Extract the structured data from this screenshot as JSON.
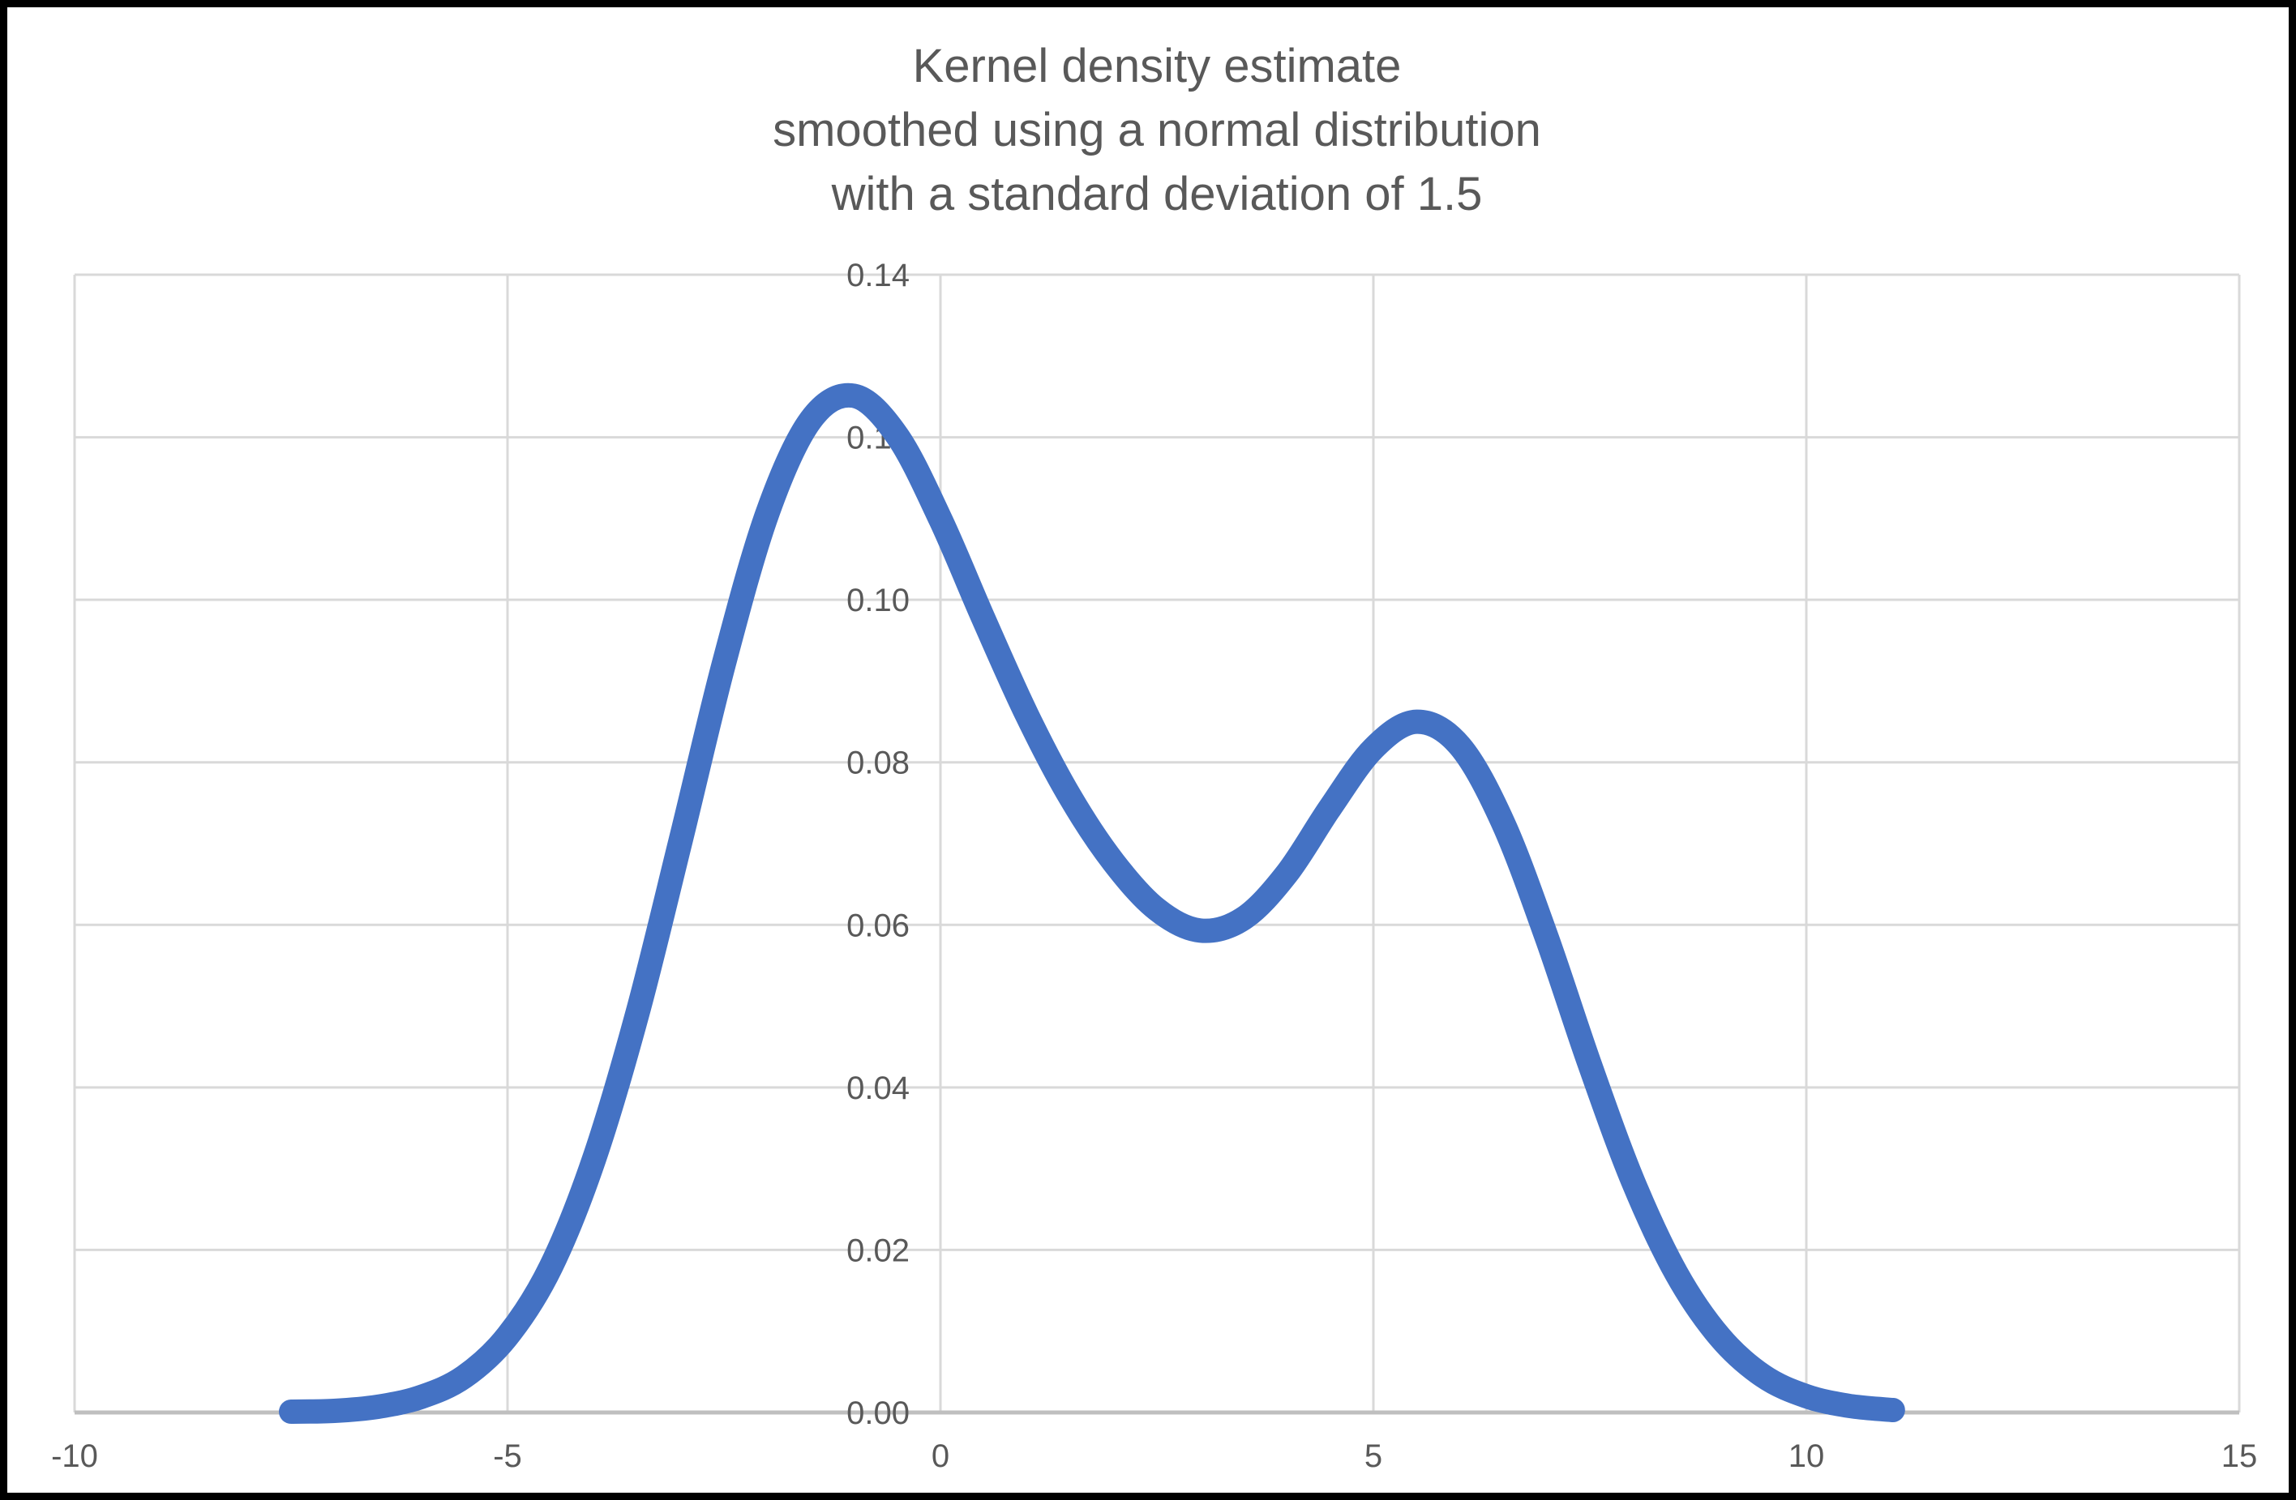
{
  "chart": {
    "title": "Kernel density estimate\nsmoothed using a normal distribution\nwith a standard deviation of 1.5",
    "colors": {
      "line": "#4472C4",
      "gridline": "#D9D9D9",
      "axis_line": "#BFBFBF",
      "text": "#595959",
      "background": "#FFFFFF",
      "frame_border": "#000000"
    }
  },
  "chart_data": {
    "type": "line",
    "title": "Kernel density estimate smoothed using a normal distribution with a standard deviation of 1.5",
    "xlabel": "",
    "ylabel": "",
    "xlim": [
      -10,
      15
    ],
    "ylim": [
      0,
      0.14
    ],
    "grid": true,
    "legend": false,
    "line_color": "#4472C4",
    "line_width": 30,
    "x_ticks": [
      -10,
      -5,
      0,
      5,
      10,
      15
    ],
    "x_tick_labels": [
      "-10",
      "-5",
      "0",
      "5",
      "10",
      "15"
    ],
    "y_ticks": [
      0,
      0.02,
      0.04,
      0.06,
      0.08,
      0.1,
      0.12,
      0.14
    ],
    "y_tick_labels": [
      "0.00",
      "0.02",
      "0.04",
      "0.06",
      "0.08",
      "0.10",
      "0.12",
      "0.14"
    ],
    "kernel_sd": 1.5,
    "x": [
      -7.5,
      -7.0,
      -6.5,
      -6.0,
      -5.5,
      -5.0,
      -4.5,
      -4.0,
      -3.5,
      -3.0,
      -2.5,
      -2.0,
      -1.5,
      -1.0,
      -0.5,
      0.0,
      0.5,
      1.0,
      1.5,
      2.0,
      2.5,
      3.0,
      3.5,
      4.0,
      4.5,
      5.0,
      5.5,
      6.0,
      6.5,
      7.0,
      7.5,
      8.0,
      8.5,
      9.0,
      9.5,
      10.0,
      10.5,
      11.0
    ],
    "y": [
      0.0001,
      0.0002,
      0.0007,
      0.0019,
      0.0044,
      0.0094,
      0.0179,
      0.0312,
      0.0491,
      0.0704,
      0.0922,
      0.1106,
      0.1221,
      0.1251,
      0.1202,
      0.1099,
      0.0976,
      0.0858,
      0.0757,
      0.0677,
      0.0619,
      0.0593,
      0.0608,
      0.0663,
      0.0744,
      0.0817,
      0.085,
      0.082,
      0.0725,
      0.0585,
      0.0428,
      0.0284,
      0.0171,
      0.0093,
      0.0045,
      0.002,
      0.0008,
      0.0003
    ]
  }
}
